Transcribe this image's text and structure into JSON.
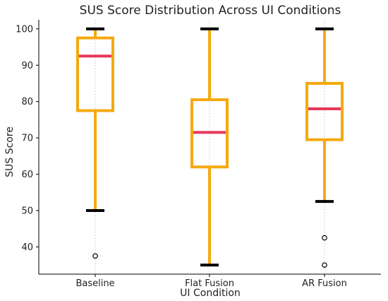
{
  "chart_data": {
    "type": "box",
    "title": "SUS Score Distribution Across UI Conditions",
    "xlabel": "UI Condition",
    "ylabel": "SUS Score",
    "ylim": [
      32.5,
      102.5
    ],
    "yticks": [
      40,
      50,
      60,
      70,
      80,
      90,
      100
    ],
    "grid": "vertical dotted lines at each category",
    "categories": [
      "Baseline",
      "Flat Fusion",
      "AR Fusion"
    ],
    "series": [
      {
        "category": "Baseline",
        "whisker_low": 50,
        "q1": 77.5,
        "median": 92.5,
        "q3": 97.5,
        "whisker_high": 100,
        "outliers": [
          37.5
        ]
      },
      {
        "category": "Flat Fusion",
        "whisker_low": 35,
        "q1": 62,
        "median": 71.5,
        "q3": 80.5,
        "whisker_high": 100,
        "outliers": []
      },
      {
        "category": "AR Fusion",
        "whisker_low": 52.5,
        "q1": 69.5,
        "median": 78,
        "q3": 85,
        "whisker_high": 100,
        "outliers": [
          42.5,
          35
        ]
      }
    ],
    "colors": {
      "box": "#f5a90f",
      "median": "#e8385a",
      "cap": "#000000",
      "outlier_edge": "#000000",
      "grid": "#cccccc",
      "axis": "#000000"
    }
  }
}
